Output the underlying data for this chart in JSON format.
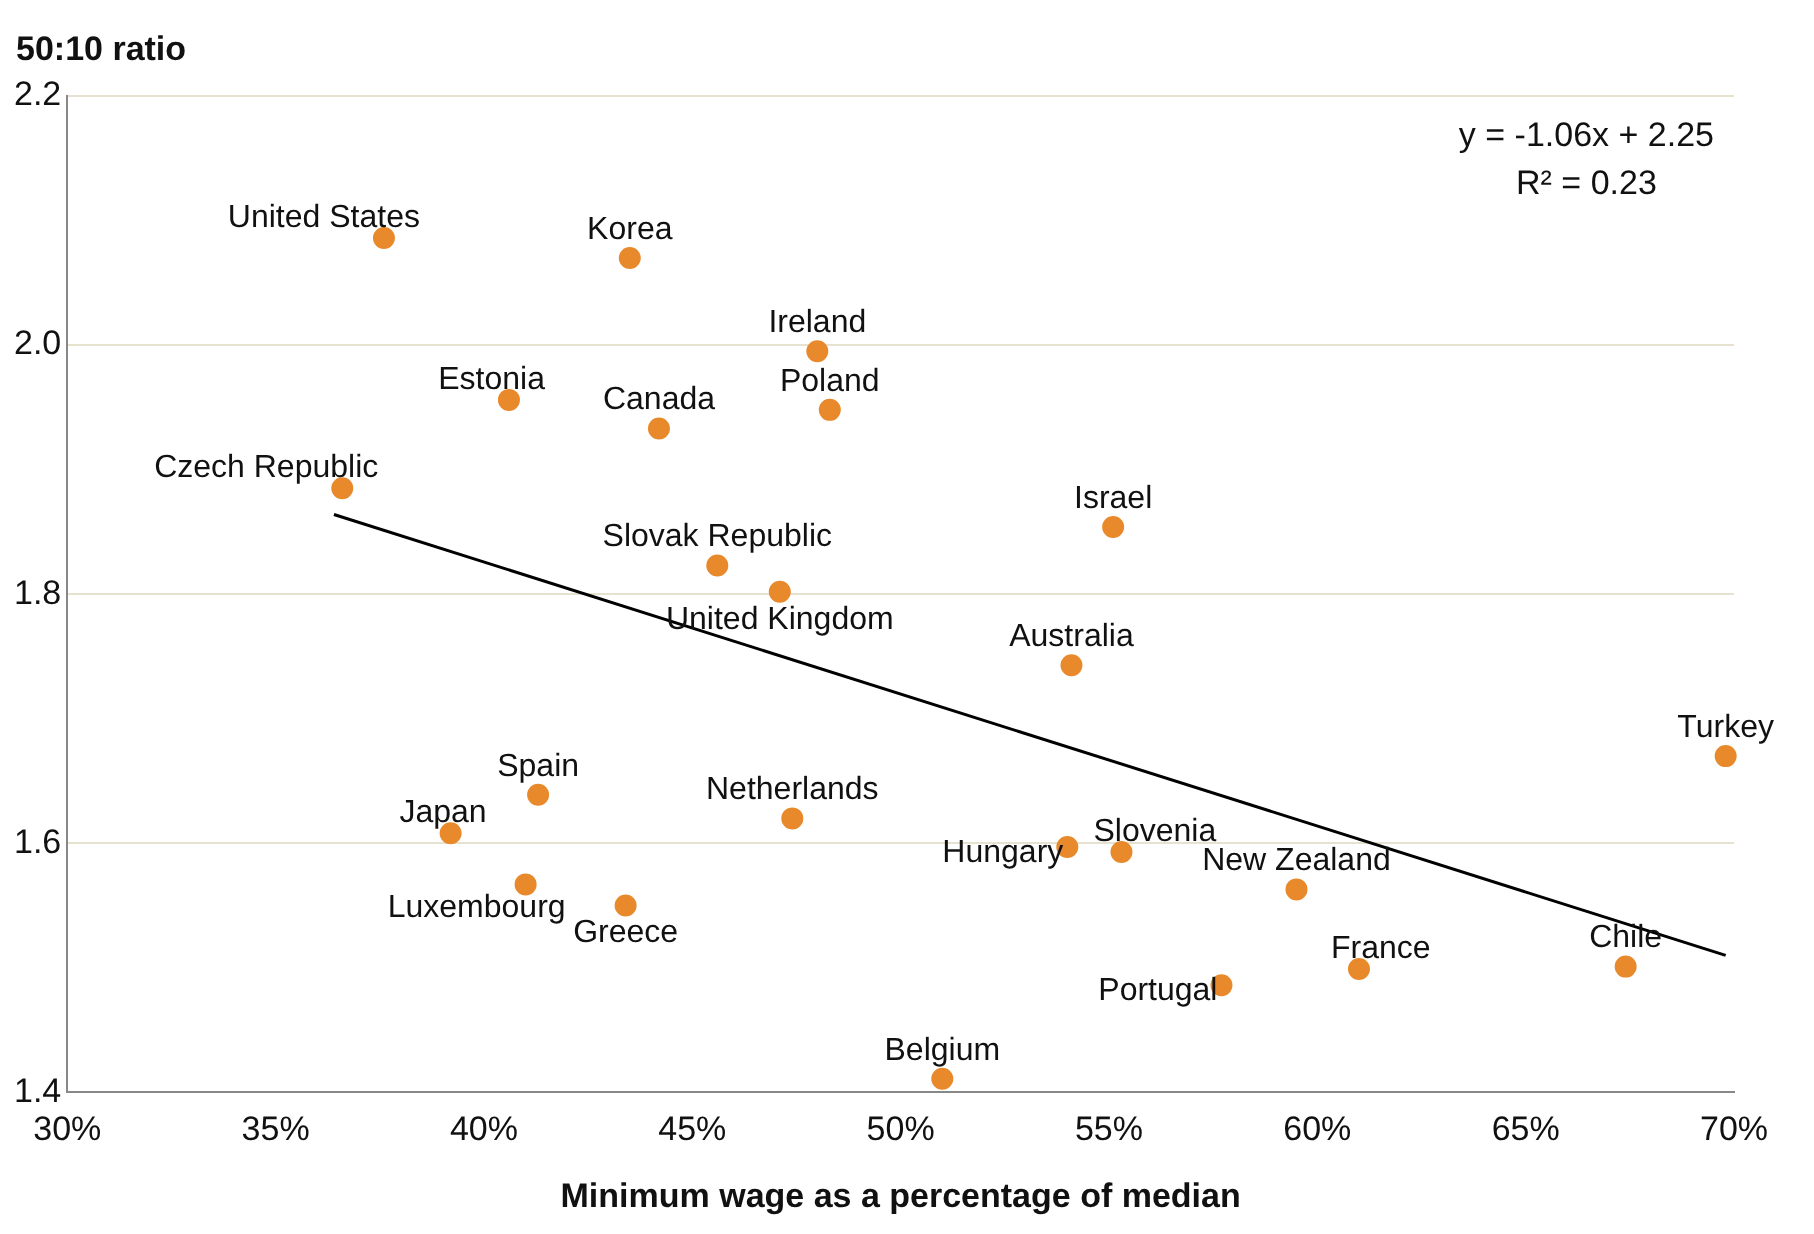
{
  "chart_data": {
    "type": "scatter",
    "xlabel": "Minimum wage as a percentage of median",
    "ylabel": "50:10 ratio",
    "annotations": [
      "y = -1.06x + 2.25",
      "R² = 0.23"
    ],
    "xlim": [
      30,
      70
    ],
    "xticks": [
      {
        "value": 30,
        "label": "30%"
      },
      {
        "value": 35,
        "label": "35%"
      },
      {
        "value": 40,
        "label": "40%"
      },
      {
        "value": 45,
        "label": "45%"
      },
      {
        "value": 50,
        "label": "50%"
      },
      {
        "value": 55,
        "label": "55%"
      },
      {
        "value": 60,
        "label": "60%"
      },
      {
        "value": 65,
        "label": "65%"
      },
      {
        "value": 70,
        "label": "70%"
      }
    ],
    "ylim": [
      1.4,
      2.2
    ],
    "yticks": [
      {
        "value": 1.4,
        "label": "1.4"
      },
      {
        "value": 1.6,
        "label": "1.6"
      },
      {
        "value": 1.8,
        "label": "1.8"
      },
      {
        "value": 2.0,
        "label": "2.0"
      },
      {
        "value": 2.2,
        "label": "2.2"
      }
    ],
    "grid": "y",
    "legend": false,
    "marker": "circle",
    "series": [
      {
        "name": "United States",
        "color": "#e8892b",
        "x": [
          37.6
        ],
        "values": [
          2.086
        ]
      },
      {
        "name": "Korea",
        "color": "#e8892b",
        "x": [
          43.5
        ],
        "values": [
          2.07
        ]
      },
      {
        "name": "Ireland",
        "color": "#e8892b",
        "x": [
          48.0
        ],
        "values": [
          1.995
        ]
      },
      {
        "name": "Estonia",
        "color": "#e8892b",
        "x": [
          40.6
        ],
        "values": [
          1.956
        ]
      },
      {
        "name": "Canada",
        "color": "#e8892b",
        "x": [
          44.2
        ],
        "values": [
          1.933
        ]
      },
      {
        "name": "Poland",
        "color": "#e8892b",
        "x": [
          48.3
        ],
        "values": [
          1.948
        ]
      },
      {
        "name": "Czech Republic",
        "color": "#e8892b",
        "x": [
          36.6
        ],
        "values": [
          1.885
        ]
      },
      {
        "name": "Israel",
        "color": "#e8892b",
        "x": [
          55.1
        ],
        "values": [
          1.854
        ]
      },
      {
        "name": "Slovak Republic",
        "color": "#e8892b",
        "x": [
          45.6
        ],
        "values": [
          1.823
        ]
      },
      {
        "name": "United Kingdom",
        "color": "#e8892b",
        "x": [
          47.1
        ],
        "values": [
          1.802
        ]
      },
      {
        "name": "Australia",
        "color": "#e8892b",
        "x": [
          54.1
        ],
        "values": [
          1.743
        ]
      },
      {
        "name": "Turkey",
        "color": "#e8892b",
        "x": [
          69.8
        ],
        "values": [
          1.67
        ]
      },
      {
        "name": "Spain",
        "color": "#e8892b",
        "x": [
          41.3
        ],
        "values": [
          1.639
        ]
      },
      {
        "name": "Netherlands",
        "color": "#e8892b",
        "x": [
          47.4
        ],
        "values": [
          1.62
        ]
      },
      {
        "name": "Japan",
        "color": "#e8892b",
        "x": [
          39.2
        ],
        "values": [
          1.608
        ]
      },
      {
        "name": "Hungary",
        "color": "#e8892b",
        "x": [
          54.0
        ],
        "values": [
          1.597
        ]
      },
      {
        "name": "Slovenia",
        "color": "#e8892b",
        "x": [
          55.3
        ],
        "values": [
          1.593
        ]
      },
      {
        "name": "Luxembourg",
        "color": "#e8892b",
        "x": [
          41.0
        ],
        "values": [
          1.567
        ]
      },
      {
        "name": "New Zealand",
        "color": "#e8892b",
        "x": [
          59.5
        ],
        "values": [
          1.563
        ]
      },
      {
        "name": "Greece",
        "color": "#e8892b",
        "x": [
          43.4
        ],
        "values": [
          1.55
        ]
      },
      {
        "name": "France",
        "color": "#e8892b",
        "x": [
          61.0
        ],
        "values": [
          1.499
        ]
      },
      {
        "name": "Chile",
        "color": "#e8892b",
        "x": [
          67.4
        ],
        "values": [
          1.501
        ]
      },
      {
        "name": "Portugal",
        "color": "#e8892b",
        "x": [
          57.7
        ],
        "values": [
          1.486
        ]
      },
      {
        "name": "Belgium",
        "color": "#e8892b",
        "x": [
          51.0
        ],
        "values": [
          1.411
        ]
      },
      {
        "type": "line",
        "marker": "none",
        "color": "#000000",
        "x": [
          36.4,
          69.8
        ],
        "values": [
          1.864,
          1.51
        ]
      }
    ]
  }
}
